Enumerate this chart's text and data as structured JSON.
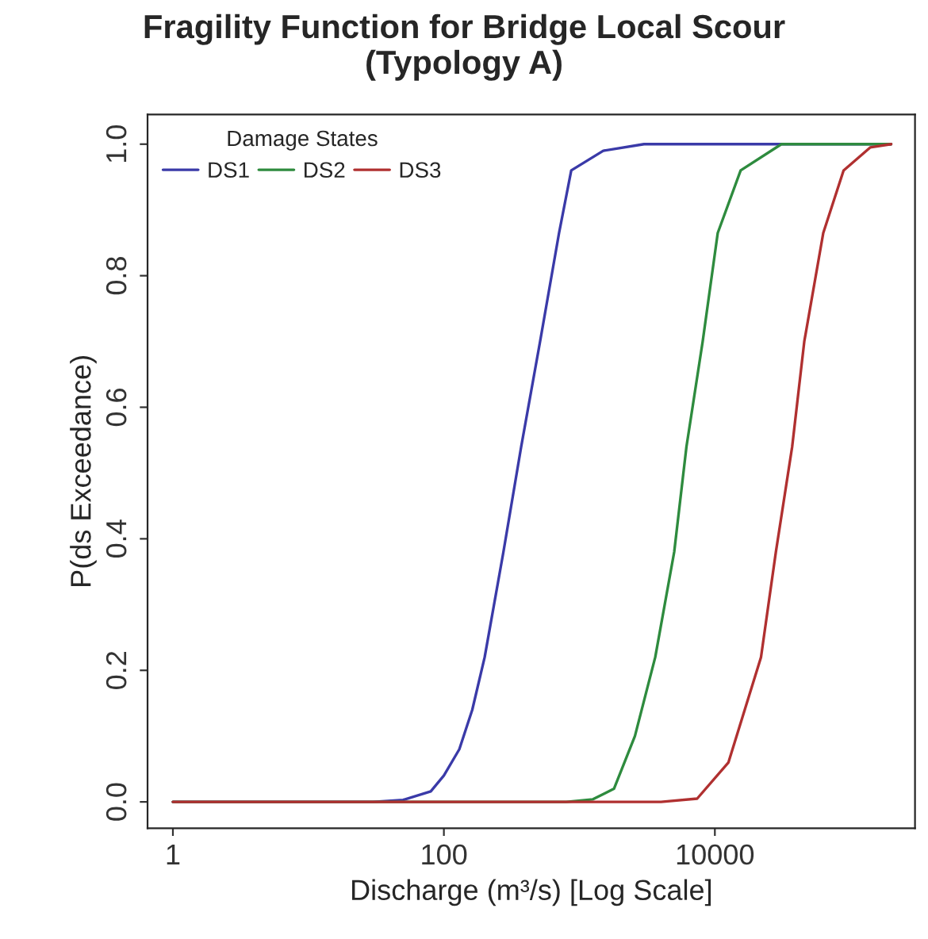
{
  "chart_data": {
    "type": "line",
    "title": "Fragility Function for Bridge Local Scour\n(Typology A)",
    "xlabel": "Discharge (m³/s) [Log Scale]",
    "ylabel": "P(ds Exceedance)",
    "legend_title": "Damage States",
    "legend": "top left",
    "log": "x",
    "grid": false,
    "marker": "none",
    "line_style": "solid",
    "xlim": [
      0.65,
      300000
    ],
    "xticks": [
      1,
      100,
      10000
    ],
    "ylim": [
      -0.04,
      1.045
    ],
    "yticks": [
      {
        "value": 0,
        "label": "0.0"
      },
      {
        "value": 0.2,
        "label": "0.2"
      },
      {
        "value": 0.4,
        "label": "0.4"
      },
      {
        "value": 0.6,
        "label": "0.6"
      },
      {
        "value": 0.8,
        "label": "0.8"
      },
      {
        "value": 1,
        "label": "1.0"
      }
    ],
    "series": [
      {
        "name": "DS1",
        "color": "#3a3aa8",
        "x": [
          1,
          10,
          30,
          50,
          80,
          100,
          130,
          162,
          200,
          275,
          372,
          513,
          708,
          871,
          1500,
          3000,
          200000
        ],
        "values": [
          0,
          0,
          0,
          0.003,
          0.016,
          0.04,
          0.08,
          0.14,
          0.22,
          0.38,
          0.54,
          0.7,
          0.865,
          0.96,
          0.99,
          1,
          1
        ]
      },
      {
        "name": "DS2",
        "color": "#2e8b3e",
        "x": [
          1,
          100,
          800,
          1260,
          1800,
          2570,
          3630,
          5010,
          6170,
          8130,
          10500,
          15500,
          31000,
          200000
        ],
        "values": [
          0,
          0,
          0,
          0.004,
          0.02,
          0.1,
          0.22,
          0.38,
          0.54,
          0.7,
          0.865,
          0.96,
          1,
          1
        ]
      },
      {
        "name": "DS3",
        "color": "#b03030",
        "x": [
          1,
          1000,
          4000,
          7400,
          12600,
          21900,
          28200,
          37200,
          45700,
          63100,
          89100,
          140000,
          200000
        ],
        "values": [
          0,
          0,
          0,
          0.005,
          0.06,
          0.22,
          0.38,
          0.54,
          0.7,
          0.865,
          0.96,
          0.995,
          1
        ]
      }
    ]
  }
}
